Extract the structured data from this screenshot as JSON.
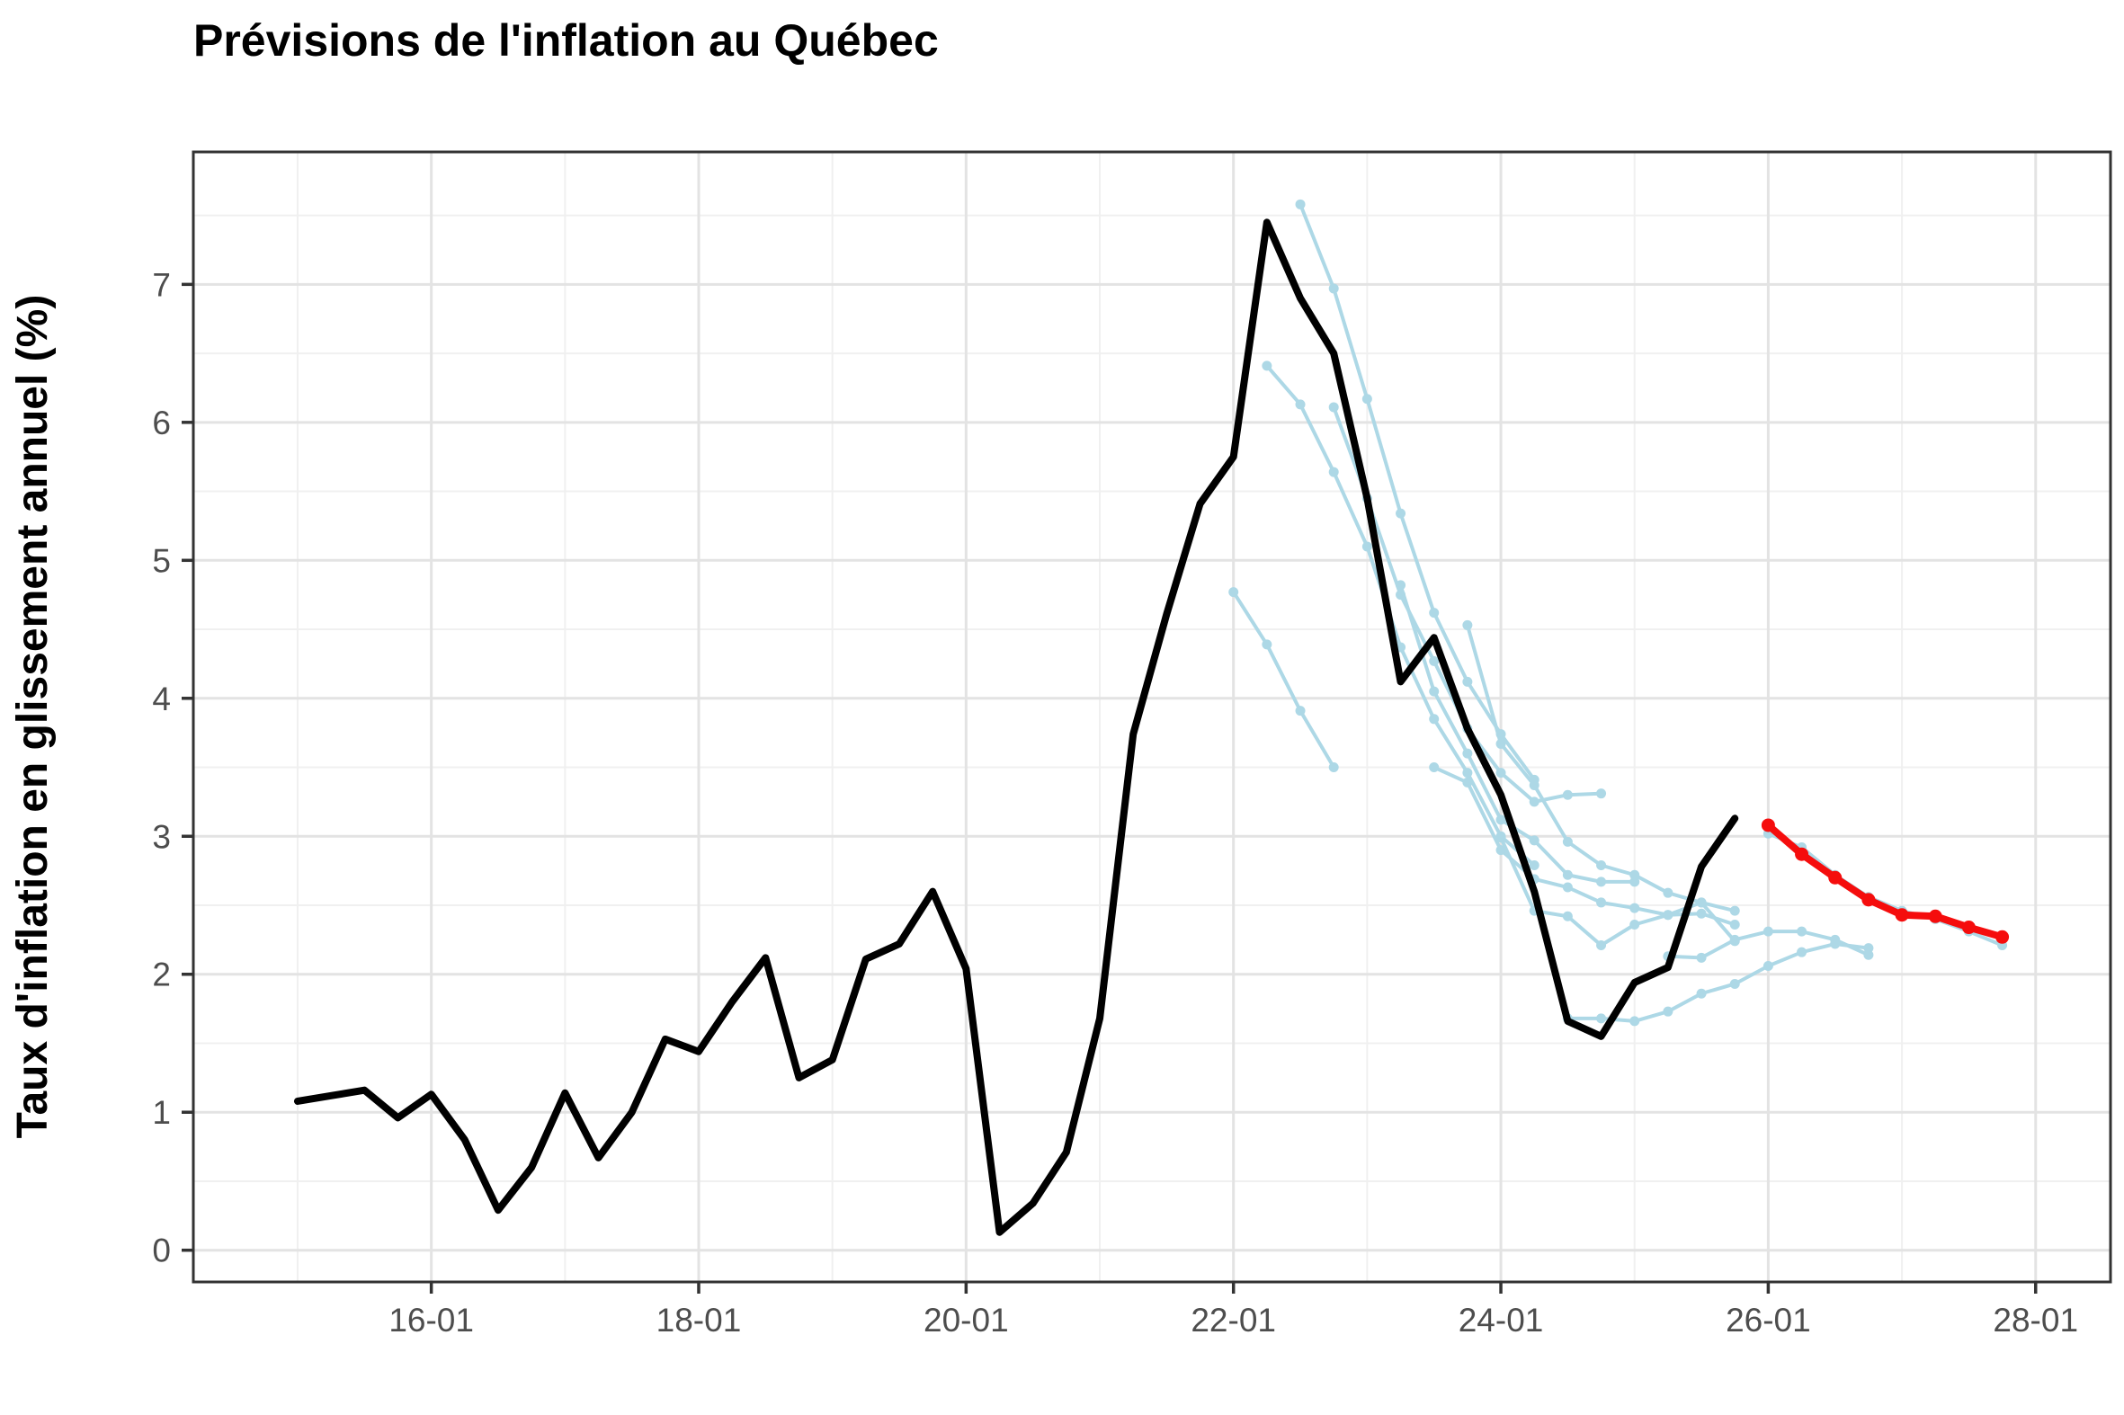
{
  "title": "Prévisions de l'inflation au Québec",
  "y_axis_title": "Taux d'inflation en glissement annuel (%)",
  "colors": {
    "historical": "#000000",
    "past_forecasts": "#ADD8E6",
    "current_forecast": "#F50D0D",
    "grid_major": "#E3E3E3",
    "grid_minor": "#F0F0F0",
    "panel_border": "#333333",
    "tick_mark": "#333333",
    "tick_text": "#4D4D4D",
    "background": "#FFFFFF"
  },
  "chart_data": {
    "type": "line",
    "title": "Prévisions de l'inflation au Québec",
    "xlabel": "",
    "ylabel": "Taux d'inflation en glissement annuel (%)",
    "grid": true,
    "legend": false,
    "x_tick_labels": [
      "16-01",
      "18-01",
      "20-01",
      "22-01",
      "24-01",
      "26-01",
      "28-01"
    ],
    "x_tick_years": [
      2016,
      2018,
      2020,
      2022,
      2024,
      2026,
      2028
    ],
    "x_minor_years": [
      2015,
      2017,
      2019,
      2021,
      2023,
      2025,
      2027
    ],
    "y_ticks": [
      0,
      1,
      2,
      3,
      4,
      5,
      6,
      7
    ],
    "y_minor_ticks": [
      0.5,
      1.5,
      2.5,
      3.5,
      4.5,
      5.5,
      6.5,
      7.5
    ],
    "xlim_years": [
      2014.22,
      2028.56
    ],
    "ylim": [
      -0.23,
      7.96
    ],
    "series": [
      {
        "name": "inflation-observee",
        "role": "historical",
        "marker": false,
        "points": [
          [
            "15-01",
            1.08
          ],
          [
            "15-04",
            1.12
          ],
          [
            "15-07",
            1.16
          ],
          [
            "15-10",
            0.96
          ],
          [
            "16-01",
            1.13
          ],
          [
            "16-04",
            0.8
          ],
          [
            "16-07",
            0.29
          ],
          [
            "16-10",
            0.6
          ],
          [
            "17-01",
            1.14
          ],
          [
            "17-04",
            0.67
          ],
          [
            "17-07",
            1.0
          ],
          [
            "17-10",
            1.53
          ],
          [
            "18-01",
            1.44
          ],
          [
            "18-04",
            1.8
          ],
          [
            "18-07",
            2.12
          ],
          [
            "18-10",
            1.25
          ],
          [
            "19-01",
            1.38
          ],
          [
            "19-04",
            2.11
          ],
          [
            "19-07",
            2.22
          ],
          [
            "19-10",
            2.6
          ],
          [
            "20-01",
            2.04
          ],
          [
            "20-04",
            0.13
          ],
          [
            "20-07",
            0.34
          ],
          [
            "20-10",
            0.71
          ],
          [
            "21-01",
            1.68
          ],
          [
            "21-04",
            3.74
          ],
          [
            "21-07",
            4.61
          ],
          [
            "21-10",
            5.41
          ],
          [
            "22-01",
            5.75
          ],
          [
            "22-04",
            7.45
          ],
          [
            "22-07",
            6.9
          ],
          [
            "22-10",
            6.5
          ],
          [
            "23-01",
            5.45
          ],
          [
            "23-04",
            4.12
          ],
          [
            "23-07",
            4.44
          ],
          [
            "23-10",
            3.78
          ],
          [
            "24-01",
            3.3
          ],
          [
            "24-04",
            2.6
          ],
          [
            "24-07",
            1.66
          ],
          [
            "24-10",
            1.55
          ],
          [
            "25-01",
            1.94
          ],
          [
            "25-04",
            2.05
          ],
          [
            "25-07",
            2.78
          ],
          [
            "25-10",
            3.13
          ]
        ]
      },
      {
        "name": "prevision-courante",
        "role": "current_forecast",
        "marker": true,
        "points": [
          [
            "26-01",
            3.08
          ],
          [
            "26-04",
            2.87
          ],
          [
            "26-07",
            2.7
          ],
          [
            "26-10",
            2.54
          ],
          [
            "27-01",
            2.43
          ],
          [
            "27-04",
            2.42
          ],
          [
            "27-07",
            2.34
          ],
          [
            "27-10",
            2.27
          ]
        ]
      }
    ],
    "past_forecast_lines": [
      [
        [
          "22-01",
          4.77
        ],
        [
          "22-04",
          4.39
        ],
        [
          "22-07",
          3.91
        ],
        [
          "22-10",
          3.5
        ]
      ],
      [
        [
          "22-04",
          6.41
        ],
        [
          "22-07",
          6.13
        ],
        [
          "22-10",
          5.64
        ],
        [
          "23-01",
          5.1
        ],
        [
          "23-04",
          4.37
        ],
        [
          "23-07",
          3.85
        ],
        [
          "23-10",
          3.46
        ],
        [
          "24-01",
          3.0
        ],
        [
          "24-04",
          2.79
        ]
      ],
      [
        [
          "22-07",
          7.58
        ],
        [
          "22-10",
          6.97
        ],
        [
          "23-01",
          6.17
        ],
        [
          "23-04",
          5.34
        ],
        [
          "23-07",
          4.62
        ],
        [
          "23-10",
          4.12
        ],
        [
          "24-01",
          3.74
        ],
        [
          "24-04",
          3.41
        ]
      ],
      [
        [
          "22-10",
          6.11
        ],
        [
          "23-01",
          5.45
        ],
        [
          "23-04",
          4.75
        ],
        [
          "23-07",
          4.27
        ],
        [
          "23-10",
          3.78
        ],
        [
          "24-01",
          3.46
        ],
        [
          "24-04",
          3.25
        ],
        [
          "24-07",
          3.3
        ],
        [
          "24-10",
          3.31
        ]
      ],
      [
        [
          "23-04",
          4.82
        ],
        [
          "23-07",
          4.05
        ],
        [
          "23-10",
          3.6
        ],
        [
          "24-01",
          3.12
        ],
        [
          "24-04",
          2.97
        ],
        [
          "24-07",
          2.72
        ],
        [
          "24-10",
          2.67
        ],
        [
          "25-01",
          2.67
        ]
      ],
      [
        [
          "23-07",
          3.5
        ],
        [
          "23-10",
          3.39
        ],
        [
          "24-01",
          2.9
        ],
        [
          "24-04",
          2.69
        ],
        [
          "24-07",
          2.63
        ],
        [
          "24-10",
          2.52
        ],
        [
          "25-01",
          2.48
        ],
        [
          "25-04",
          2.43
        ],
        [
          "25-07",
          2.44
        ],
        [
          "25-10",
          2.36
        ]
      ],
      [
        [
          "23-10",
          4.53
        ],
        [
          "24-01",
          3.67
        ],
        [
          "24-04",
          3.37
        ],
        [
          "24-07",
          2.96
        ],
        [
          "24-10",
          2.79
        ],
        [
          "25-01",
          2.72
        ],
        [
          "25-04",
          2.59
        ],
        [
          "25-07",
          2.52
        ],
        [
          "25-10",
          2.46
        ]
      ],
      [
        [
          "24-01",
          2.99
        ],
        [
          "24-04",
          2.46
        ],
        [
          "24-07",
          2.42
        ],
        [
          "24-10",
          2.21
        ],
        [
          "25-01",
          2.36
        ],
        [
          "25-04",
          2.43
        ],
        [
          "25-07",
          2.52
        ],
        [
          "25-10",
          2.24
        ]
      ],
      [
        [
          "24-07",
          1.68
        ],
        [
          "24-10",
          1.68
        ],
        [
          "25-01",
          1.66
        ],
        [
          "25-04",
          1.73
        ],
        [
          "25-07",
          1.86
        ],
        [
          "25-10",
          1.93
        ],
        [
          "26-01",
          2.06
        ],
        [
          "26-04",
          2.16
        ],
        [
          "26-07",
          2.22
        ],
        [
          "26-10",
          2.19
        ]
      ],
      [
        [
          "25-04",
          2.13
        ],
        [
          "25-07",
          2.12
        ],
        [
          "25-10",
          2.25
        ],
        [
          "26-01",
          2.31
        ],
        [
          "26-04",
          2.31
        ],
        [
          "26-07",
          2.25
        ],
        [
          "26-10",
          2.14
        ]
      ],
      [
        [
          "26-01",
          3.02
        ],
        [
          "26-04",
          2.92
        ],
        [
          "26-07",
          2.72
        ],
        [
          "26-10",
          2.56
        ],
        [
          "27-01",
          2.46
        ],
        [
          "27-04",
          2.4
        ],
        [
          "27-07",
          2.31
        ],
        [
          "27-10",
          2.21
        ]
      ]
    ]
  }
}
